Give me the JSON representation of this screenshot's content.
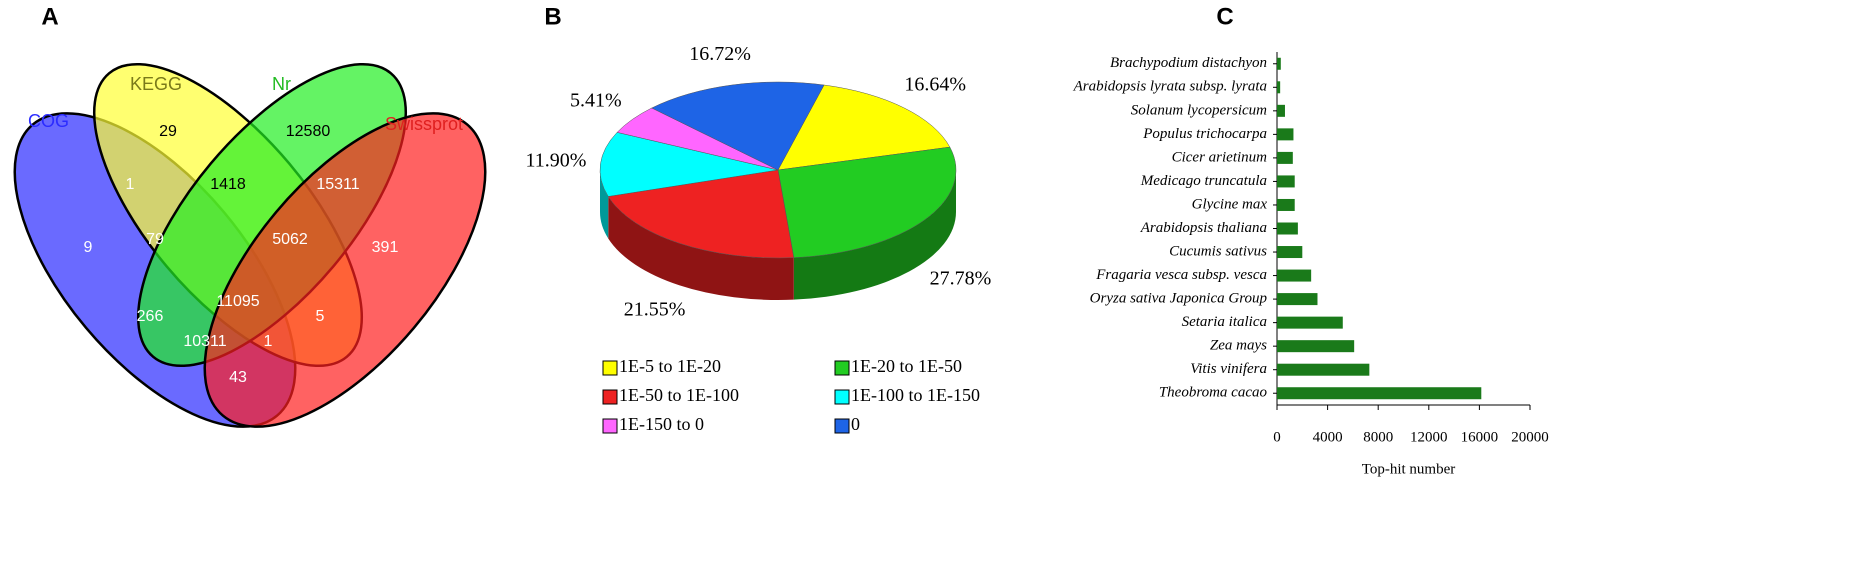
{
  "chart_data": [
    {
      "type": "venn",
      "panel": "A",
      "sets": [
        {
          "name": "COG",
          "color": "#2b2bff"
        },
        {
          "name": "KEGG",
          "color": "#ffff33"
        },
        {
          "name": "Nr",
          "color": "#22ee22"
        },
        {
          "name": "Swissprot",
          "color": "#ff2020"
        }
      ],
      "regions": [
        9,
        29,
        12580,
        391,
        1,
        1418,
        15311,
        79,
        5062,
        266,
        11095,
        5,
        10311,
        1,
        43
      ]
    },
    {
      "type": "pie",
      "panel": "B",
      "categories": [
        "1E-5 to 1E-20",
        "1E-20 to 1E-50",
        "1E-50 to 1E-100",
        "1E-100 to 1E-150",
        "1E-150 to 0",
        "0"
      ],
      "values": [
        16.64,
        27.78,
        21.55,
        11.9,
        5.41,
        16.72
      ],
      "value_labels": [
        "16.64%",
        "27.78%",
        "21.55%",
        "11.90%",
        "5.41%",
        "16.72%"
      ],
      "colors": [
        "#ffff00",
        "#22cc22",
        "#ee2222",
        "#00ffff",
        "#ff66ff",
        "#1e64e6"
      ]
    },
    {
      "type": "hbar",
      "panel": "C",
      "categories": [
        "Brachypodium distachyon",
        "Arabidopsis lyrata subsp. lyrata",
        "Solanum lycopersicum",
        "Populus trichocarpa",
        "Cicer arietinum",
        "Medicago truncatula",
        "Glycine max",
        "Arabidopsis thaliana",
        "Cucumis sativus",
        "Fragaria vesca subsp. vesca",
        "Oryza sativa Japonica Group",
        "Setaria italica",
        "Zea mays",
        "Vitis vinifera",
        "Theobroma cacao"
      ],
      "values": [
        300,
        250,
        630,
        1300,
        1250,
        1400,
        1400,
        1650,
        2000,
        2700,
        3200,
        5200,
        6100,
        7300,
        16150
      ],
      "color": "#1a7a1a",
      "xlim": [
        0,
        20000
      ],
      "xticks": [
        0,
        4000,
        8000,
        12000,
        16000,
        20000
      ],
      "xlabel": "Top-hit number"
    }
  ]
}
